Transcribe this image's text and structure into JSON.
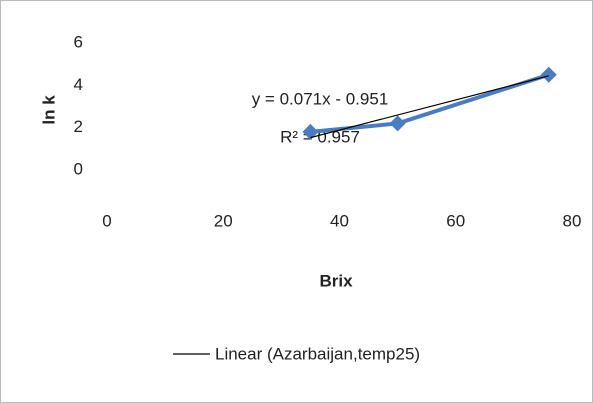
{
  "chart_data": {
    "type": "scatter",
    "xlabel": "Brix",
    "ylabel": "ln k",
    "x": [
      35,
      50,
      76
    ],
    "series": [
      {
        "color": "#4a7cc4",
        "values": [
          1.8,
          2.2,
          4.5
        ]
      }
    ],
    "trendline": {
      "name": "Linear (Azarbaijan,temp25)",
      "color": "#000000",
      "x": [
        35,
        76
      ],
      "values": [
        1.53,
        4.45
      ]
    },
    "annotations": [
      "y = 0.071x - 0.951",
      "R² = 0.957"
    ],
    "xlim": [
      0,
      80
    ],
    "xticks": [
      0,
      20,
      40,
      60,
      80
    ],
    "ylim": [
      0,
      6
    ],
    "yticks": [
      0,
      2,
      4,
      6
    ],
    "grid": false
  }
}
